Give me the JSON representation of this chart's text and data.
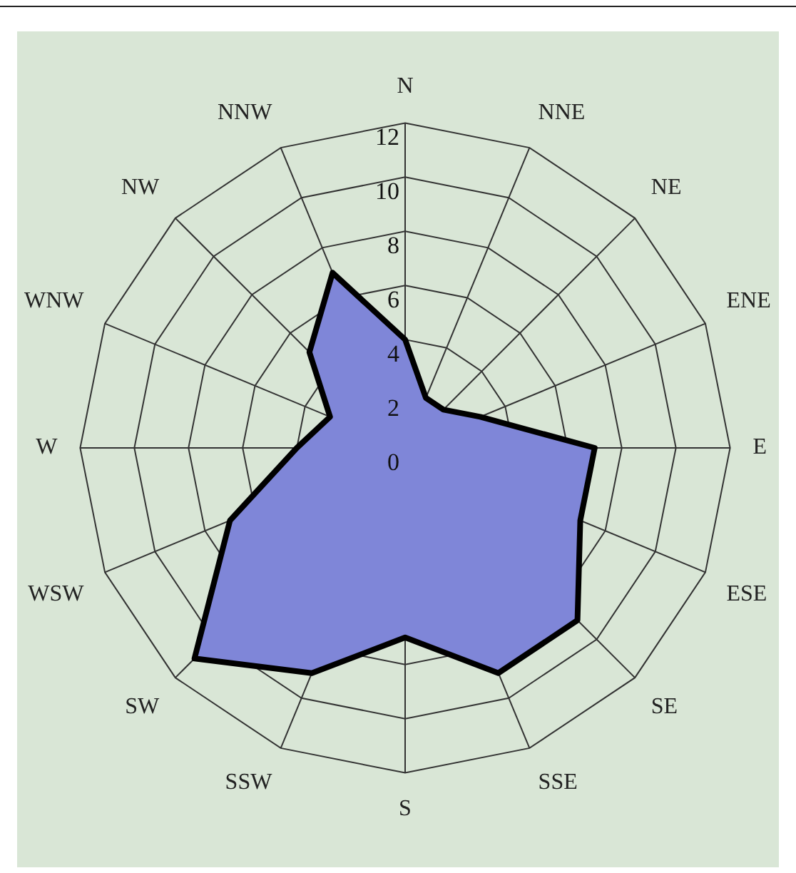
{
  "chart_data": {
    "type": "radar",
    "categories": [
      "N",
      "NNE",
      "NE",
      "ENE",
      "E",
      "ESE",
      "SE",
      "SSE",
      "S",
      "SSW",
      "SW",
      "WSW",
      "W",
      "WNW",
      "NW",
      "NNW"
    ],
    "series": [
      {
        "color": "#7f86d8",
        "values": [
          4,
          2,
          2,
          3,
          7,
          7,
          9,
          9,
          7,
          9,
          11,
          7,
          4,
          3,
          5,
          7
        ]
      }
    ],
    "ylim": [
      0,
      12
    ],
    "yticks": [
      0,
      2,
      4,
      6,
      8,
      10,
      12
    ],
    "grid": true,
    "legend": false,
    "marker": "none"
  }
}
